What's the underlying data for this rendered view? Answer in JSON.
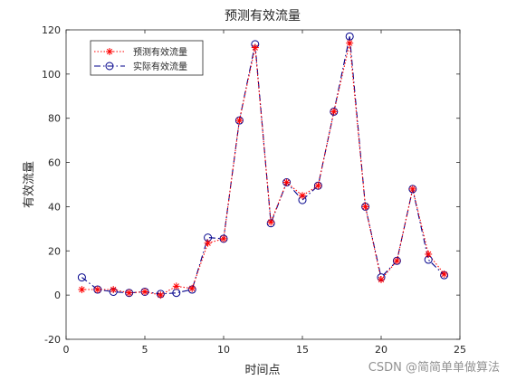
{
  "chart_data": {
    "type": "line",
    "title": "预测有效流量",
    "xlabel": "时间点",
    "ylabel": "有效流量",
    "xlim": [
      0,
      25
    ],
    "ylim": [
      -20,
      120
    ],
    "xticks": [
      0,
      5,
      10,
      15,
      20,
      25
    ],
    "yticks": [
      -20,
      0,
      20,
      40,
      60,
      80,
      100,
      120
    ],
    "grid": false,
    "legend_position": "top-left",
    "x": [
      1,
      2,
      3,
      4,
      5,
      6,
      7,
      8,
      9,
      10,
      11,
      12,
      13,
      14,
      15,
      16,
      17,
      18,
      19,
      20,
      21,
      22,
      23,
      24
    ],
    "series": [
      {
        "name": "预测有效流量",
        "color": "#ff0000",
        "line_style": "dotted",
        "marker": "asterisk",
        "values": [
          2.5,
          2.5,
          2.5,
          1.0,
          1.5,
          0.0,
          4.0,
          3.0,
          23.5,
          25.5,
          79.0,
          112.0,
          33.0,
          51.0,
          45.0,
          49.5,
          83.0,
          114.0,
          40.0,
          7.0,
          15.5,
          48.0,
          18.5,
          9.5
        ]
      },
      {
        "name": "实际有效流量",
        "color": "#00008b",
        "line_style": "dash-dot",
        "marker": "circle",
        "values": [
          8.0,
          2.5,
          1.5,
          1.0,
          1.5,
          0.5,
          1.0,
          2.5,
          26.0,
          25.5,
          79.0,
          113.5,
          32.5,
          51.0,
          43.0,
          49.5,
          83.0,
          117.0,
          40.0,
          8.0,
          15.5,
          48.0,
          16.0,
          9.0
        ]
      }
    ]
  },
  "watermark": "CSDN @简简单单做算法"
}
